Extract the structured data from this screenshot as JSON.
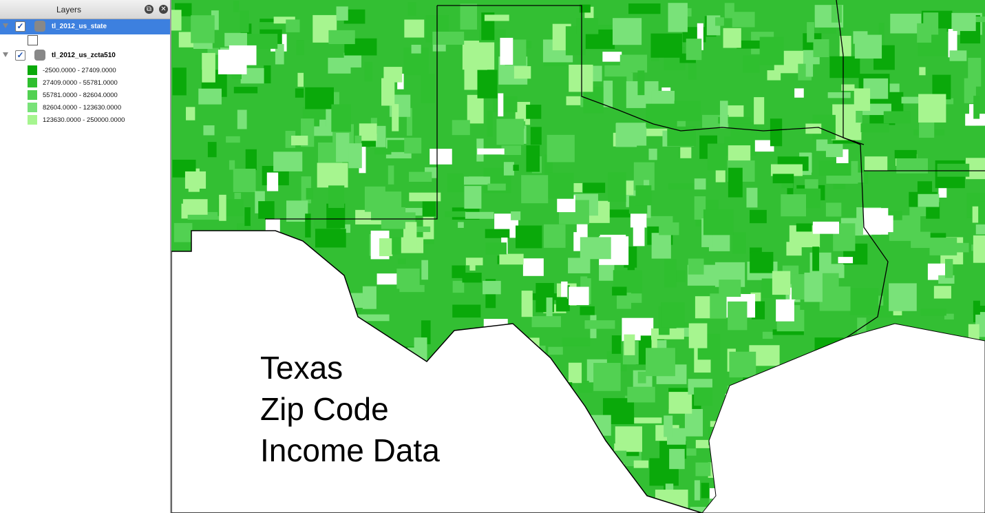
{
  "panel": {
    "title": "Layers",
    "layers": [
      {
        "name": "tl_2012_us_state",
        "selected": true
      },
      {
        "name": "tl_2012_us_zcta510",
        "selected": false,
        "legend": [
          {
            "label": "-2500.0000 - 27409.0000",
            "color": "#0aa90a"
          },
          {
            "label": "27409.0000 - 55781.0000",
            "color": "#2fbf2f"
          },
          {
            "label": "55781.0000 - 82604.0000",
            "color": "#52d152"
          },
          {
            "label": "82604.0000 - 123630.0000",
            "color": "#79e279"
          },
          {
            "label": "123630.0000 - 250000.0000",
            "color": "#a6f58f"
          }
        ]
      }
    ]
  },
  "map": {
    "annotation": [
      "Texas",
      "Zip Code",
      "Income Data"
    ]
  }
}
